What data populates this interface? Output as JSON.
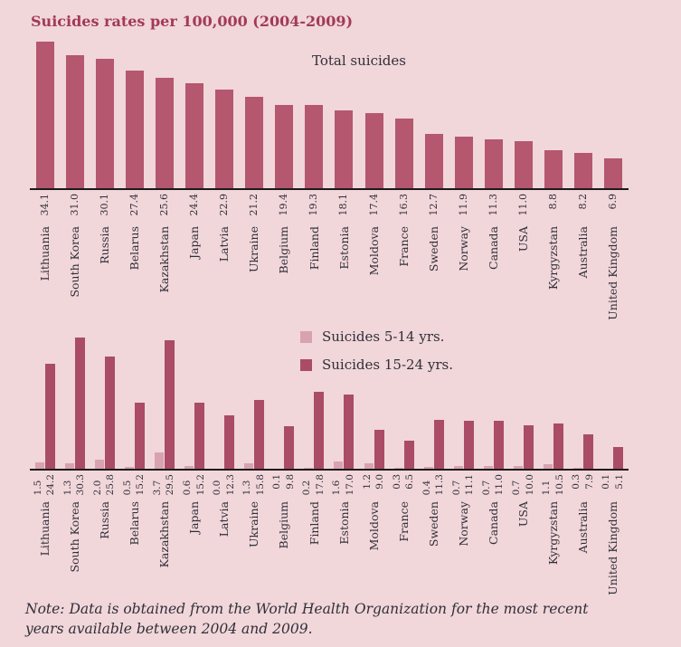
{
  "page": {
    "title": "Suicides rates per 100,000 (2004-2009)",
    "note": "Note: Data is obtained from the World Health Organization for the most recent years available between 2004 and 2009."
  },
  "colors": {
    "background": "#f1d6da",
    "bar_total": "#b4576f",
    "bar_5_14": "#d9a2b0",
    "bar_15_24": "#aa4c66",
    "title_text": "#a23a57",
    "label_text": "#2f2f38",
    "axis_line": "#1b1b1b"
  },
  "chart_data": [
    {
      "type": "bar",
      "title": "Total suicides",
      "categories": [
        "Lithuania",
        "South Korea",
        "Russia",
        "Belarus",
        "Kazakhstan",
        "Japan",
        "Latvia",
        "Ukraine",
        "Belgium",
        "Finland",
        "Estonia",
        "Moldova",
        "France",
        "Sweden",
        "Norway",
        "Canada",
        "USA",
        "Kyrgyzstan",
        "Australia",
        "United Kingdom"
      ],
      "values": [
        34.1,
        31.0,
        30.1,
        27.4,
        25.6,
        24.4,
        22.9,
        21.2,
        19.4,
        19.3,
        18.1,
        17.4,
        16.3,
        12.7,
        11.9,
        11.3,
        11.0,
        8.8,
        8.2,
        6.9
      ],
      "xlabel": "",
      "ylabel": "",
      "ylim": [
        0,
        35
      ],
      "grid": false,
      "value_labels": "rotated below axis",
      "legend_position": "none"
    },
    {
      "type": "bar",
      "title": "",
      "categories": [
        "Lithuania",
        "South Korea",
        "Russia",
        "Belarus",
        "Kazakhstan",
        "Japan",
        "Latvia",
        "Ukraine",
        "Belgium",
        "Finland",
        "Estonia",
        "Moldova",
        "France",
        "Sweden",
        "Norway",
        "Canada",
        "USA",
        "Kyrgyzstan",
        "Australia",
        "United Kingdom"
      ],
      "series": [
        {
          "name": "Suicides 5-14 yrs.",
          "values": [
            1.5,
            1.3,
            2.0,
            0.5,
            3.7,
            0.6,
            0.0,
            1.3,
            0.1,
            0.2,
            1.6,
            1.2,
            0.3,
            0.4,
            0.7,
            0.7,
            0.7,
            1.1,
            0.3,
            0.1
          ]
        },
        {
          "name": "Suicides 15-24 yrs.",
          "values": [
            24.2,
            30.3,
            25.8,
            15.2,
            29.5,
            15.2,
            12.3,
            15.8,
            9.8,
            17.8,
            17.0,
            9.0,
            6.5,
            11.3,
            11.1,
            11.0,
            10.0,
            10.5,
            7.9,
            5.1
          ]
        }
      ],
      "xlabel": "",
      "ylabel": "",
      "ylim": [
        0,
        31
      ],
      "grid": false,
      "value_labels": "rotated below axis",
      "legend_position": "upper center-right"
    }
  ]
}
